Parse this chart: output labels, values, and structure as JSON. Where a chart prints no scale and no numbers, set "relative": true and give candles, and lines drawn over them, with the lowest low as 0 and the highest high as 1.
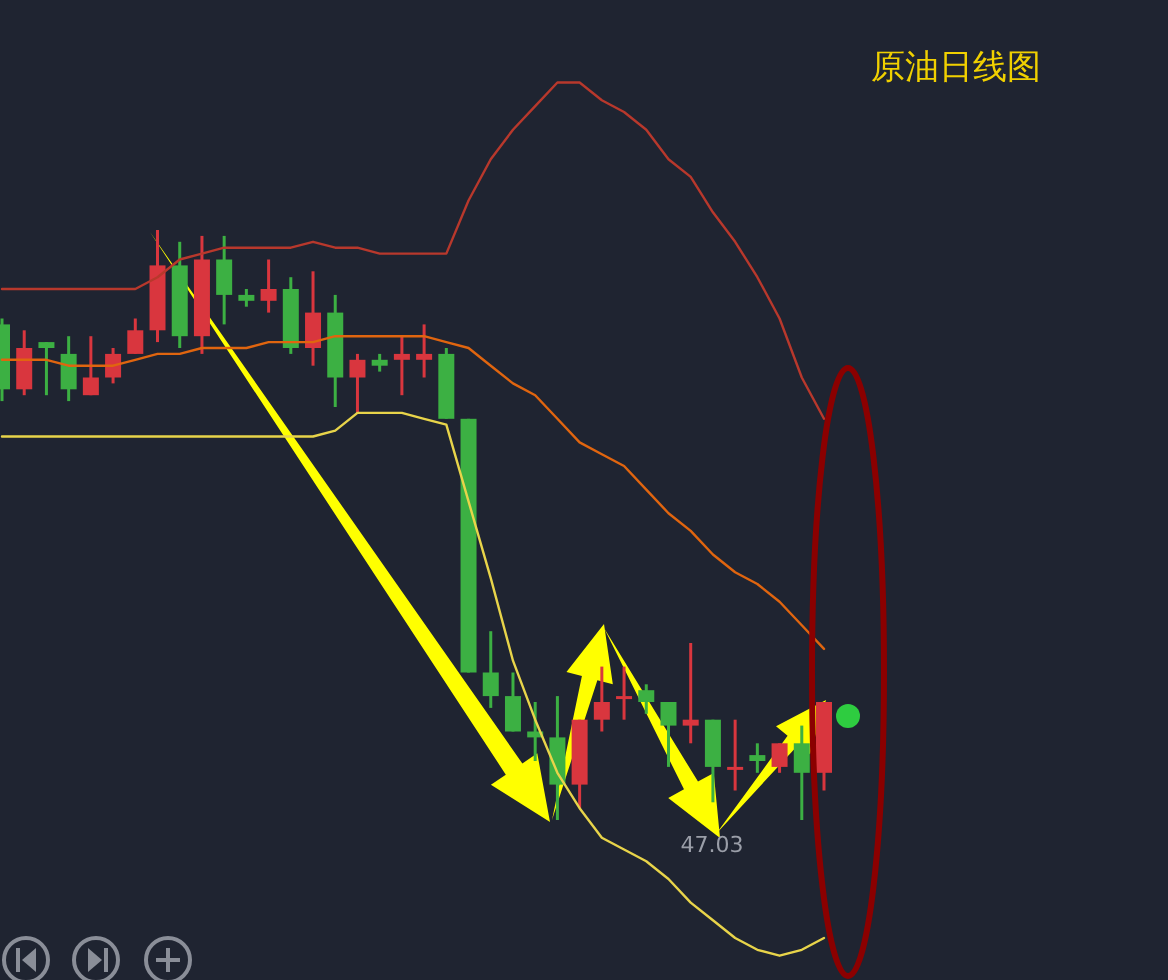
{
  "chart_data": {
    "type": "candlestick",
    "title": "原油日线图",
    "relative": true,
    "categories": [
      null,
      null,
      null,
      null,
      null,
      null,
      null,
      null,
      null,
      null,
      null,
      null,
      null,
      null,
      null,
      null,
      null,
      null,
      null,
      null,
      null,
      null,
      null,
      null,
      null,
      null,
      null,
      null,
      null,
      null,
      null,
      null,
      null,
      null,
      null,
      null,
      null,
      null
    ],
    "ohlc": [
      [
        0.84,
        0.85,
        0.71,
        0.73
      ],
      [
        0.73,
        0.83,
        0.72,
        0.8
      ],
      [
        0.81,
        0.81,
        0.72,
        0.8
      ],
      [
        0.79,
        0.82,
        0.71,
        0.73
      ],
      [
        0.72,
        0.82,
        0.72,
        0.75
      ],
      [
        0.75,
        0.8,
        0.74,
        0.79
      ],
      [
        0.79,
        0.85,
        0.79,
        0.83
      ],
      [
        0.83,
        1,
        0.81,
        0.94
      ],
      [
        0.94,
        0.98,
        0.8,
        0.82
      ],
      [
        0.82,
        0.99,
        0.79,
        0.95
      ],
      [
        0.95,
        0.99,
        0.84,
        0.89
      ],
      [
        0.89,
        0.9,
        0.87,
        0.88
      ],
      [
        0.88,
        0.95,
        0.86,
        0.9
      ],
      [
        0.9,
        0.92,
        0.79,
        0.8
      ],
      [
        0.8,
        0.93,
        0.77,
        0.86
      ],
      [
        0.86,
        0.89,
        0.7,
        0.75
      ],
      [
        0.75,
        0.79,
        0.69,
        0.78
      ],
      [
        0.78,
        0.79,
        0.76,
        0.77
      ],
      [
        0.78,
        0.82,
        0.72,
        0.79
      ],
      [
        0.78,
        0.84,
        0.75,
        0.79
      ],
      [
        0.79,
        0.8,
        0.68,
        0.68
      ],
      [
        0.68,
        0.68,
        0.25,
        0.25
      ],
      [
        0.25,
        0.32,
        0.19,
        0.21
      ],
      [
        0.21,
        0.25,
        0.15,
        0.15
      ],
      [
        0.15,
        0.2,
        0.1,
        0.14
      ],
      [
        0.14,
        0.21,
        0,
        0.06
      ],
      [
        0.06,
        0.17,
        0.02,
        0.17
      ],
      [
        0.17,
        0.26,
        0.15,
        0.2
      ],
      [
        0.21,
        0.26,
        0.17,
        0.21
      ],
      [
        0.22,
        0.23,
        0.18,
        0.2
      ],
      [
        0.2,
        0.2,
        0.09,
        0.16
      ],
      [
        0.16,
        0.3,
        0.13,
        0.17
      ],
      [
        0.17,
        0.17,
        0.03,
        0.09
      ],
      [
        0.09,
        0.17,
        0.05,
        0.09
      ],
      [
        0.11,
        0.13,
        0.08,
        0.1
      ],
      [
        0.09,
        0.13,
        0.08,
        0.13
      ],
      [
        0.13,
        0.16,
        0,
        0.08
      ],
      [
        0.08,
        0.2,
        0.05,
        0.2
      ]
    ],
    "colors": [
      "#3cb043",
      "#d9363e",
      "#3cb043",
      "#3cb043",
      "#d9363e",
      "#d9363e",
      "#d9363e",
      "#d9363e",
      "#3cb043",
      "#d9363e",
      "#3cb043",
      "#3cb043",
      "#d9363e",
      "#3cb043",
      "#d9363e",
      "#3cb043",
      "#d9363e",
      "#3cb043",
      "#d9363e",
      "#d9363e",
      "#3cb043",
      "#3cb043",
      "#3cb043",
      "#3cb043",
      "#3cb043",
      "#3cb043",
      "#d9363e",
      "#d9363e",
      "#d9363e",
      "#3cb043",
      "#3cb043",
      "#d9363e",
      "#3cb043",
      "#d9363e",
      "#3cb043",
      "#d9363e",
      "#3cb043",
      "#d9363e"
    ],
    "series": [
      {
        "type": "line",
        "color": "#b8382c",
        "values": [
          0.9,
          0.9,
          0.9,
          0.9,
          0.9,
          0.9,
          0.9,
          0.92,
          0.95,
          0.96,
          0.97,
          0.97,
          0.97,
          0.97,
          0.98,
          0.97,
          0.97,
          0.96,
          0.96,
          0.96,
          0.96,
          1.05,
          1.12,
          1.17,
          1.21,
          1.25,
          1.25,
          1.22,
          1.2,
          1.17,
          1.12,
          1.09,
          1.03,
          0.98,
          0.92,
          0.85,
          0.75,
          0.68
        ]
      },
      {
        "type": "line",
        "color": "#e0650f",
        "values": [
          0.78,
          0.78,
          0.78,
          0.77,
          0.77,
          0.77,
          0.78,
          0.79,
          0.79,
          0.8,
          0.8,
          0.8,
          0.81,
          0.81,
          0.81,
          0.82,
          0.82,
          0.82,
          0.82,
          0.82,
          0.81,
          0.8,
          0.77,
          0.74,
          0.72,
          0.68,
          0.64,
          0.62,
          0.6,
          0.56,
          0.52,
          0.49,
          0.45,
          0.42,
          0.4,
          0.37,
          0.33,
          0.29
        ]
      },
      {
        "type": "line",
        "color": "#e8d44a",
        "values": [
          0.65,
          0.65,
          0.65,
          0.65,
          0.65,
          0.65,
          0.65,
          0.65,
          0.65,
          0.65,
          0.65,
          0.65,
          0.65,
          0.65,
          0.65,
          0.66,
          0.69,
          0.69,
          0.69,
          0.68,
          0.67,
          0.54,
          0.41,
          0.27,
          0.17,
          0.08,
          0.02,
          -0.03,
          -0.05,
          -0.07,
          -0.1,
          -0.14,
          -0.17,
          -0.2,
          -0.22,
          -0.23,
          -0.22,
          -0.2
        ]
      }
    ],
    "annotations": [
      "47.03"
    ]
  }
}
